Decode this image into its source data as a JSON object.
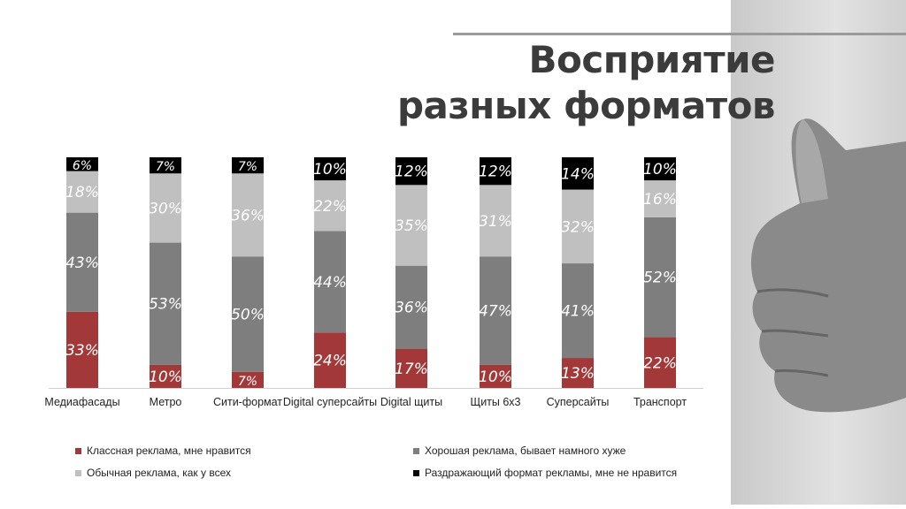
{
  "title": [
    "Восприятие",
    "разных форматов"
  ],
  "colors": {
    "classy": "#a33838",
    "good": "#7e7e7e",
    "ordinary": "#c0c0c0",
    "annoying": "#000000"
  },
  "chart_data": {
    "type": "bar",
    "stacked": true,
    "title": "Восприятие разных форматов",
    "categories": [
      "Медиафасады",
      "Метро",
      "Сити-формат",
      "Digital суперсайты",
      "Digital щиты",
      "Щиты 6x3",
      "Суперсайты",
      "Транспорт"
    ],
    "series": [
      {
        "name": "Классная реклама, мне нравится",
        "values": [
          33,
          10,
          7,
          24,
          17,
          10,
          13,
          22
        ]
      },
      {
        "name": "Хорошая реклама, бывает намного хуже",
        "values": [
          43,
          53,
          50,
          44,
          36,
          47,
          41,
          52
        ]
      },
      {
        "name": "Обычная реклама, как у всех",
        "values": [
          18,
          30,
          36,
          22,
          35,
          31,
          32,
          16
        ]
      },
      {
        "name": "Раздражающий формат рекламы, мне не нравится",
        "values": [
          6,
          7,
          7,
          10,
          12,
          12,
          14,
          10
        ]
      }
    ],
    "ylim": [
      0,
      100
    ],
    "unit": "%",
    "legend": "bottom",
    "grid": false
  }
}
